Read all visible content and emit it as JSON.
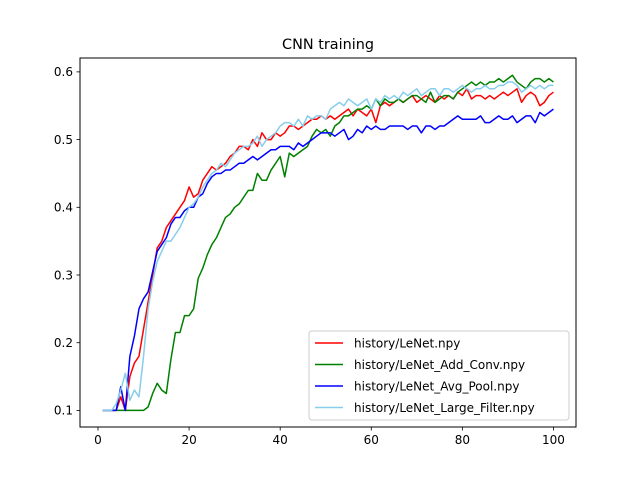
{
  "chart_data": {
    "type": "line",
    "title": "CNN training",
    "xlabel": "",
    "ylabel": "",
    "xlim": [
      -3.95,
      104.95
    ],
    "ylim": [
      0.0755,
      0.6205
    ],
    "xticks": [
      0,
      20,
      40,
      60,
      80,
      100
    ],
    "xtick_labels": [
      "0",
      "20",
      "40",
      "60",
      "80",
      "100"
    ],
    "yticks": [
      0.1,
      0.2,
      0.3,
      0.4,
      0.5,
      0.6
    ],
    "ytick_labels": [
      "0.1",
      "0.2",
      "0.3",
      "0.4",
      "0.5",
      "0.6"
    ],
    "grid": false,
    "legend_position": "lower-right",
    "series": [
      {
        "name": "history/LeNet.npy",
        "color": "#ff0000",
        "x": [
          1,
          2,
          3,
          4,
          5,
          6,
          7,
          8,
          9,
          10,
          11,
          12,
          13,
          14,
          15,
          16,
          17,
          18,
          19,
          20,
          21,
          22,
          23,
          24,
          25,
          26,
          27,
          28,
          29,
          30,
          31,
          32,
          33,
          34,
          35,
          36,
          37,
          38,
          39,
          40,
          41,
          42,
          43,
          44,
          45,
          46,
          47,
          48,
          49,
          50,
          51,
          52,
          53,
          54,
          55,
          56,
          57,
          58,
          59,
          60,
          61,
          62,
          63,
          64,
          65,
          66,
          67,
          68,
          69,
          70,
          71,
          72,
          73,
          74,
          75,
          76,
          77,
          78,
          79,
          80,
          81,
          82,
          83,
          84,
          85,
          86,
          87,
          88,
          89,
          90,
          91,
          92,
          93,
          94,
          95,
          96,
          97,
          98,
          99,
          100
        ],
        "y": [
          0.1,
          0.1,
          0.1,
          0.1,
          0.12,
          0.1,
          0.15,
          0.17,
          0.18,
          0.22,
          0.26,
          0.3,
          0.34,
          0.35,
          0.37,
          0.38,
          0.39,
          0.4,
          0.41,
          0.43,
          0.415,
          0.42,
          0.44,
          0.45,
          0.46,
          0.455,
          0.46,
          0.465,
          0.475,
          0.48,
          0.49,
          0.49,
          0.485,
          0.5,
          0.49,
          0.51,
          0.5,
          0.5,
          0.51,
          0.505,
          0.51,
          0.52,
          0.52,
          0.515,
          0.52,
          0.525,
          0.53,
          0.53,
          0.535,
          0.53,
          0.535,
          0.53,
          0.535,
          0.54,
          0.545,
          0.535,
          0.545,
          0.54,
          0.535,
          0.545,
          0.525,
          0.55,
          0.555,
          0.55,
          0.555,
          0.56,
          0.555,
          0.56,
          0.565,
          0.555,
          0.56,
          0.565,
          0.56,
          0.555,
          0.565,
          0.56,
          0.565,
          0.56,
          0.57,
          0.565,
          0.575,
          0.56,
          0.565,
          0.565,
          0.56,
          0.565,
          0.56,
          0.565,
          0.57,
          0.565,
          0.57,
          0.575,
          0.555,
          0.565,
          0.57,
          0.565,
          0.55,
          0.555,
          0.565,
          0.57
        ]
      },
      {
        "name": "history/LeNet_Add_Conv.npy",
        "color": "#008000",
        "x": [
          1,
          2,
          3,
          4,
          5,
          6,
          7,
          8,
          9,
          10,
          11,
          12,
          13,
          14,
          15,
          16,
          17,
          18,
          19,
          20,
          21,
          22,
          23,
          24,
          25,
          26,
          27,
          28,
          29,
          30,
          31,
          32,
          33,
          34,
          35,
          36,
          37,
          38,
          39,
          40,
          41,
          42,
          43,
          44,
          45,
          46,
          47,
          48,
          49,
          50,
          51,
          52,
          53,
          54,
          55,
          56,
          57,
          58,
          59,
          60,
          61,
          62,
          63,
          64,
          65,
          66,
          67,
          68,
          69,
          70,
          71,
          72,
          73,
          74,
          75,
          76,
          77,
          78,
          79,
          80,
          81,
          82,
          83,
          84,
          85,
          86,
          87,
          88,
          89,
          90,
          91,
          92,
          93,
          94,
          95,
          96,
          97,
          98,
          99,
          100
        ],
        "y": [
          0.1,
          0.1,
          0.1,
          0.1,
          0.1,
          0.1,
          0.1,
          0.1,
          0.1,
          0.1,
          0.105,
          0.125,
          0.14,
          0.13,
          0.125,
          0.175,
          0.215,
          0.215,
          0.24,
          0.24,
          0.25,
          0.295,
          0.31,
          0.33,
          0.345,
          0.355,
          0.37,
          0.385,
          0.39,
          0.4,
          0.405,
          0.415,
          0.425,
          0.425,
          0.45,
          0.44,
          0.44,
          0.455,
          0.465,
          0.475,
          0.445,
          0.48,
          0.475,
          0.48,
          0.485,
          0.49,
          0.505,
          0.515,
          0.51,
          0.515,
          0.505,
          0.52,
          0.525,
          0.535,
          0.535,
          0.54,
          0.545,
          0.545,
          0.55,
          0.545,
          0.56,
          0.55,
          0.56,
          0.555,
          0.555,
          0.56,
          0.555,
          0.56,
          0.565,
          0.565,
          0.56,
          0.555,
          0.57,
          0.555,
          0.56,
          0.565,
          0.565,
          0.56,
          0.57,
          0.575,
          0.58,
          0.585,
          0.58,
          0.585,
          0.58,
          0.585,
          0.585,
          0.59,
          0.585,
          0.59,
          0.595,
          0.585,
          0.58,
          0.575,
          0.585,
          0.59,
          0.59,
          0.585,
          0.59,
          0.585
        ]
      },
      {
        "name": "history/LeNet_Avg_Pool.npy",
        "color": "#0000ff",
        "x": [
          1,
          2,
          3,
          4,
          5,
          6,
          7,
          8,
          9,
          10,
          11,
          12,
          13,
          14,
          15,
          16,
          17,
          18,
          19,
          20,
          21,
          22,
          23,
          24,
          25,
          26,
          27,
          28,
          29,
          30,
          31,
          32,
          33,
          34,
          35,
          36,
          37,
          38,
          39,
          40,
          41,
          42,
          43,
          44,
          45,
          46,
          47,
          48,
          49,
          50,
          51,
          52,
          53,
          54,
          55,
          56,
          57,
          58,
          59,
          60,
          61,
          62,
          63,
          64,
          65,
          66,
          67,
          68,
          69,
          70,
          71,
          72,
          73,
          74,
          75,
          76,
          77,
          78,
          79,
          80,
          81,
          82,
          83,
          84,
          85,
          86,
          87,
          88,
          89,
          90,
          91,
          92,
          93,
          94,
          95,
          96,
          97,
          98,
          99,
          100
        ],
        "y": [
          0.1,
          0.1,
          0.1,
          0.1,
          0.135,
          0.1,
          0.18,
          0.21,
          0.25,
          0.265,
          0.275,
          0.305,
          0.335,
          0.345,
          0.355,
          0.375,
          0.385,
          0.385,
          0.395,
          0.4,
          0.4,
          0.415,
          0.42,
          0.435,
          0.445,
          0.45,
          0.45,
          0.455,
          0.455,
          0.46,
          0.465,
          0.465,
          0.47,
          0.475,
          0.47,
          0.475,
          0.48,
          0.485,
          0.485,
          0.49,
          0.49,
          0.49,
          0.485,
          0.495,
          0.49,
          0.495,
          0.5,
          0.505,
          0.51,
          0.51,
          0.51,
          0.505,
          0.51,
          0.515,
          0.5,
          0.505,
          0.515,
          0.51,
          0.52,
          0.515,
          0.52,
          0.515,
          0.515,
          0.52,
          0.52,
          0.52,
          0.52,
          0.515,
          0.52,
          0.52,
          0.51,
          0.52,
          0.52,
          0.515,
          0.52,
          0.52,
          0.525,
          0.53,
          0.535,
          0.53,
          0.53,
          0.53,
          0.53,
          0.535,
          0.525,
          0.525,
          0.53,
          0.535,
          0.53,
          0.53,
          0.535,
          0.525,
          0.53,
          0.535,
          0.535,
          0.525,
          0.54,
          0.535,
          0.54,
          0.545
        ]
      },
      {
        "name": "history/LeNet_Large_Filter.npy",
        "color": "#87ceeb",
        "x": [
          1,
          2,
          3,
          4,
          5,
          6,
          7,
          8,
          9,
          10,
          11,
          12,
          13,
          14,
          15,
          16,
          17,
          18,
          19,
          20,
          21,
          22,
          23,
          24,
          25,
          26,
          27,
          28,
          29,
          30,
          31,
          32,
          33,
          34,
          35,
          36,
          37,
          38,
          39,
          40,
          41,
          42,
          43,
          44,
          45,
          46,
          47,
          48,
          49,
          50,
          51,
          52,
          53,
          54,
          55,
          56,
          57,
          58,
          59,
          60,
          61,
          62,
          63,
          64,
          65,
          66,
          67,
          68,
          69,
          70,
          71,
          72,
          73,
          74,
          75,
          76,
          77,
          78,
          79,
          80,
          81,
          82,
          83,
          84,
          85,
          86,
          87,
          88,
          89,
          90,
          91,
          92,
          93,
          94,
          95,
          96,
          97,
          98,
          99,
          100
        ],
        "y": [
          0.1,
          0.1,
          0.1,
          0.11,
          0.13,
          0.155,
          0.115,
          0.13,
          0.12,
          0.18,
          0.25,
          0.29,
          0.32,
          0.335,
          0.35,
          0.35,
          0.36,
          0.37,
          0.385,
          0.4,
          0.405,
          0.415,
          0.43,
          0.44,
          0.45,
          0.455,
          0.465,
          0.46,
          0.47,
          0.48,
          0.485,
          0.49,
          0.49,
          0.495,
          0.505,
          0.49,
          0.5,
          0.505,
          0.51,
          0.52,
          0.525,
          0.525,
          0.52,
          0.53,
          0.52,
          0.535,
          0.53,
          0.535,
          0.535,
          0.53,
          0.545,
          0.55,
          0.555,
          0.55,
          0.56,
          0.555,
          0.55,
          0.555,
          0.56,
          0.545,
          0.56,
          0.555,
          0.565,
          0.56,
          0.565,
          0.56,
          0.57,
          0.565,
          0.57,
          0.575,
          0.565,
          0.57,
          0.575,
          0.575,
          0.565,
          0.575,
          0.575,
          0.57,
          0.575,
          0.58,
          0.575,
          0.57,
          0.575,
          0.575,
          0.58,
          0.575,
          0.575,
          0.58,
          0.58,
          0.585,
          0.585,
          0.58,
          0.57,
          0.575,
          0.58,
          0.575,
          0.58,
          0.575,
          0.58,
          0.58
        ]
      }
    ]
  }
}
